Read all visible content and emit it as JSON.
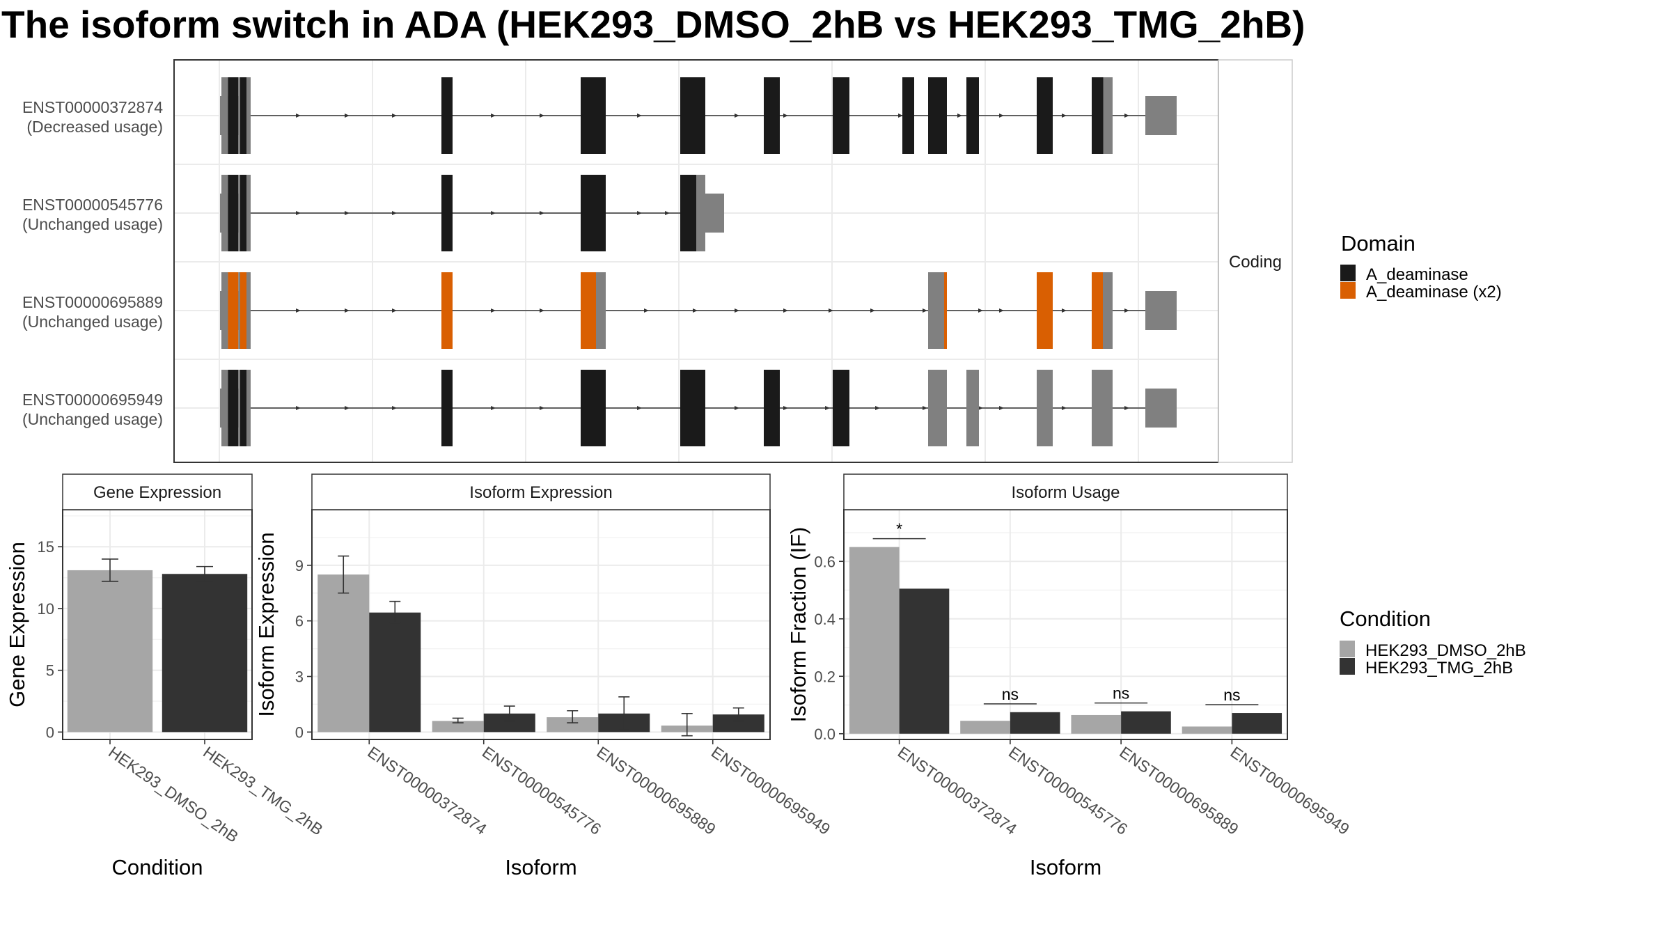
{
  "title": "The isoform switch in ADA (HEK293_DMSO_2hB vs HEK293_TMG_2hB)",
  "colors": {
    "domain_1": "#1a1a1a",
    "domain_2": "#d95f02",
    "non_coding_exon": "#808080",
    "condition_1": "#a6a6a6",
    "condition_2": "#333333",
    "panel_border": "#333333",
    "strip_fill": "#ffffff",
    "grid": "#ebebeb"
  },
  "structure": {
    "facet_label": "Coding",
    "isoforms": [
      {
        "id": "ENST00000372874",
        "usage": "(Decreased usage)"
      },
      {
        "id": "ENST00000545776",
        "usage": "(Unchanged usage)"
      },
      {
        "id": "ENST00000695889",
        "usage": "(Unchanged usage)"
      },
      {
        "id": "ENST00000695949",
        "usage": "(Unchanged usage)"
      }
    ],
    "legend_title": "Domain",
    "legend_items": [
      "A_deaminase",
      "A_deaminase (x2)"
    ]
  },
  "condition_legend": {
    "title": "Condition",
    "items": [
      "HEK293_DMSO_2hB",
      "HEK293_TMG_2hB"
    ]
  },
  "chart_data": [
    {
      "type": "bar",
      "panel_title": "Gene Expression",
      "xlabel": "Condition",
      "ylabel": "Gene Expression",
      "categories": [
        "HEK293_DMSO_2hB",
        "HEK293_TMG_2hB"
      ],
      "values": [
        13.1,
        12.8
      ],
      "errors": [
        [
          12.2,
          14.0
        ],
        [
          12.2,
          13.4
        ]
      ],
      "ylim": [
        -0.6,
        18
      ],
      "yticks": [
        0,
        5,
        10,
        15
      ],
      "grid": true
    },
    {
      "type": "bar",
      "panel_title": "Isoform Expression",
      "xlabel": "Isoform",
      "ylabel": "Isoform Expression",
      "categories": [
        "ENST00000372874",
        "ENST00000545776",
        "ENST00000695889",
        "ENST00000695949"
      ],
      "series": [
        {
          "name": "HEK293_DMSO_2hB",
          "values": [
            8.5,
            0.6,
            0.8,
            0.35
          ],
          "errors": [
            [
              7.5,
              9.5
            ],
            [
              0.5,
              0.75
            ],
            [
              0.5,
              1.15
            ],
            [
              -0.2,
              1.0
            ]
          ]
        },
        {
          "name": "HEK293_TMG_2hB",
          "values": [
            6.45,
            1.0,
            1.0,
            0.95
          ],
          "errors": [
            [
              5.9,
              7.05
            ],
            [
              0.6,
              1.4
            ],
            [
              0.1,
              1.9
            ],
            [
              0.6,
              1.3
            ]
          ]
        }
      ],
      "ylim": [
        -0.4,
        12
      ],
      "yticks": [
        0,
        3,
        6,
        9
      ],
      "grid": true
    },
    {
      "type": "bar",
      "panel_title": "Isoform Usage",
      "xlabel": "Isoform",
      "ylabel": "Isoform Fraction (IF)",
      "categories": [
        "ENST00000372874",
        "ENST00000545776",
        "ENST00000695889",
        "ENST00000695949"
      ],
      "series": [
        {
          "name": "HEK293_DMSO_2hB",
          "values": [
            0.65,
            0.045,
            0.065,
            0.025
          ]
        },
        {
          "name": "HEK293_TMG_2hB",
          "values": [
            0.505,
            0.075,
            0.078,
            0.072
          ]
        }
      ],
      "significance": [
        "*",
        "ns",
        "ns",
        "ns"
      ],
      "ylim": [
        -0.02,
        0.78
      ],
      "yticks": [
        0.0,
        0.2,
        0.4,
        0.6
      ],
      "ytick_labels": [
        "0.0",
        "0.2",
        "0.4",
        "0.6"
      ],
      "grid": true
    }
  ]
}
